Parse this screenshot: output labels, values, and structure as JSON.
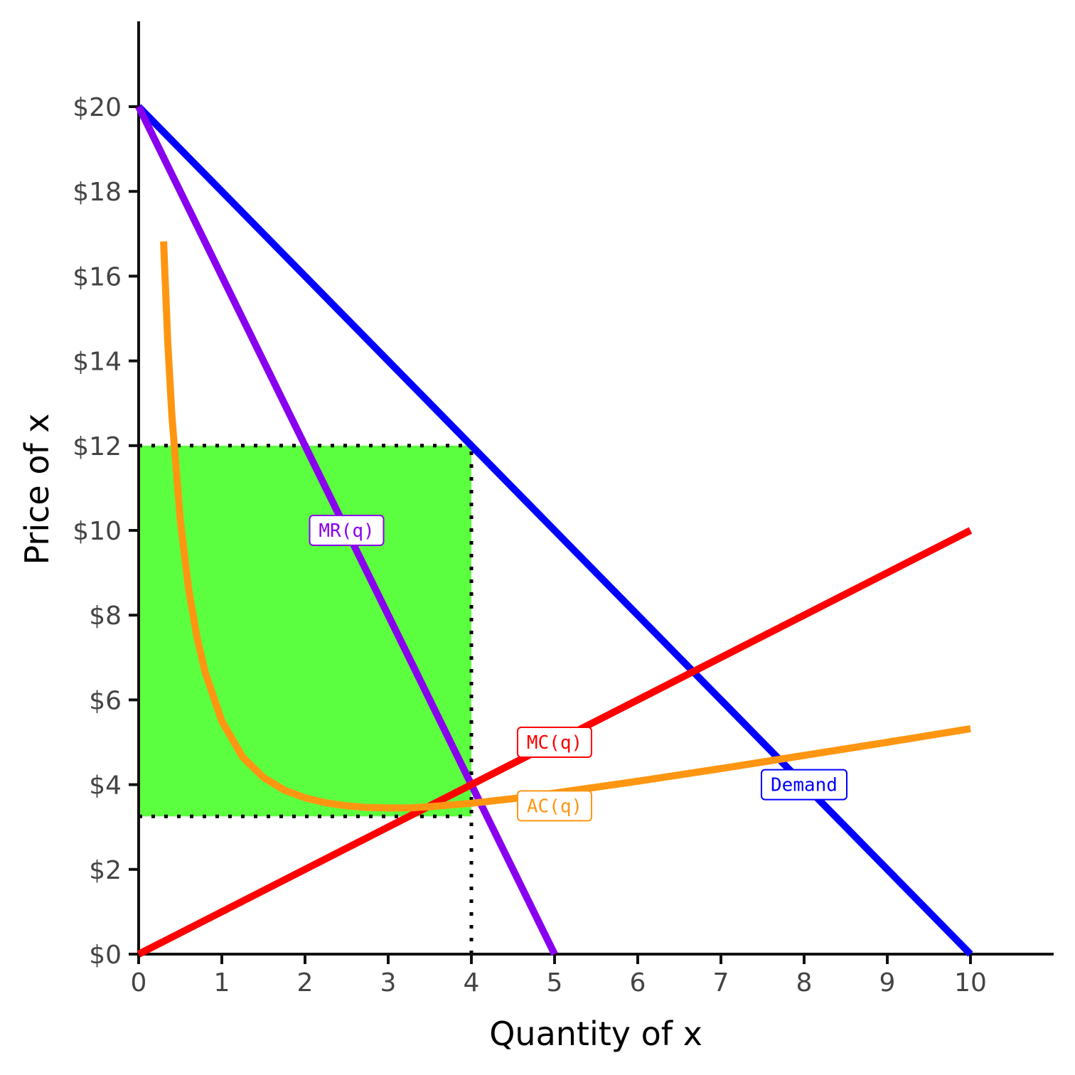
{
  "chart_data": {
    "type": "line",
    "xlabel": "Quantity of x",
    "ylabel": "Price of x",
    "xlim": [
      0,
      11
    ],
    "ylim": [
      0,
      22
    ],
    "x_ticks": [
      0,
      1,
      2,
      3,
      4,
      5,
      6,
      7,
      8,
      9,
      10
    ],
    "y_ticks": [
      0,
      2,
      4,
      6,
      8,
      10,
      12,
      14,
      16,
      18,
      20
    ],
    "y_tick_labels": [
      "$0",
      "$2",
      "$4",
      "$6",
      "$8",
      "$10",
      "$12",
      "$14",
      "$16",
      "$18",
      "$20"
    ],
    "grid": false,
    "profit_rectangle": {
      "x_min": 0,
      "x_max": 4,
      "y_min": 3.25,
      "y_max": 12,
      "color": "#5cff3f"
    },
    "reference_lines": [
      {
        "from": [
          0,
          12
        ],
        "to": [
          4,
          12
        ]
      },
      {
        "from": [
          0,
          3.25
        ],
        "to": [
          4,
          3.25
        ]
      },
      {
        "from": [
          4,
          0
        ],
        "to": [
          4,
          12
        ]
      }
    ],
    "series": [
      {
        "name": "Demand",
        "color": "#0000ff",
        "x": [
          0,
          10
        ],
        "y": [
          20,
          0
        ]
      },
      {
        "name": "MR(q)",
        "color": "#8800ee",
        "x": [
          0,
          5
        ],
        "y": [
          20,
          0
        ]
      },
      {
        "name": "MC(q)",
        "color": "#ff0000",
        "x": [
          0,
          10
        ],
        "y": [
          0,
          10
        ]
      },
      {
        "name": "AC(q)",
        "color": "#ff9611",
        "x": [
          0.3,
          0.35,
          0.4,
          0.5,
          0.6,
          0.7,
          0.8,
          1,
          1.25,
          1.5,
          1.75,
          2,
          2.25,
          2.5,
          2.75,
          3,
          3.25,
          3.5,
          4,
          4.5,
          5,
          6,
          7,
          8,
          9,
          10
        ],
        "y": [
          16.82,
          14.46,
          12.7,
          10.25,
          8.63,
          7.49,
          6.65,
          5.5,
          4.65,
          4.17,
          3.87,
          3.69,
          3.57,
          3.5,
          3.46,
          3.45,
          3.45,
          3.48,
          3.56,
          3.67,
          3.8,
          4.08,
          4.38,
          4.69,
          5.0,
          5.32
        ]
      }
    ],
    "labels": [
      {
        "text": "MR(q)",
        "x": 2.5,
        "y": 10,
        "color": "#8800ee"
      },
      {
        "text": "MC(q)",
        "x": 5,
        "y": 5,
        "color": "#ff0000"
      },
      {
        "text": "AC(q)",
        "x": 5,
        "y": 3.5,
        "color": "#ff9611"
      },
      {
        "text": "Demand",
        "x": 8,
        "y": 4,
        "color": "#0000ff"
      }
    ]
  }
}
